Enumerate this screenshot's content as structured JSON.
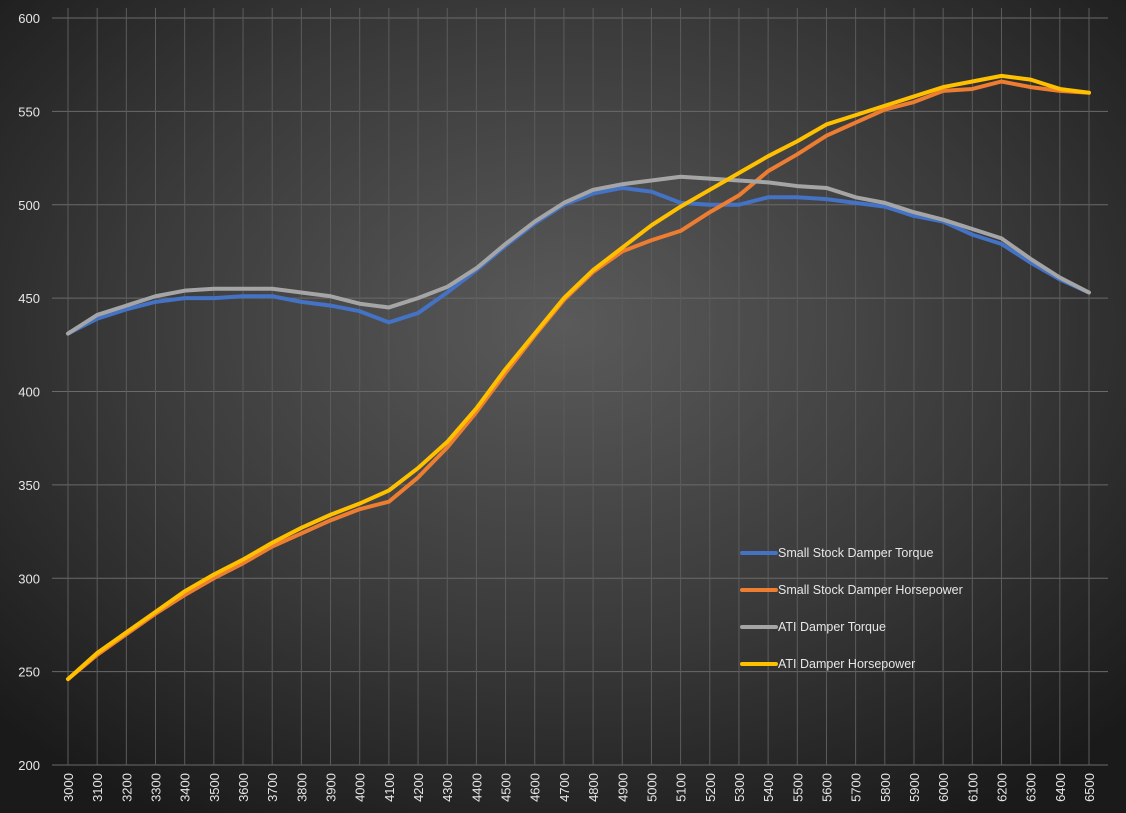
{
  "chart_data": {
    "type": "line",
    "title": "",
    "xlabel": "",
    "ylabel": "",
    "ylim": [
      200,
      600
    ],
    "y_ticks": [
      200,
      250,
      300,
      350,
      400,
      450,
      500,
      550,
      600
    ],
    "grid": true,
    "legend_position": "bottom-right",
    "background": "radial-gray",
    "x": [
      3000,
      3100,
      3200,
      3300,
      3400,
      3500,
      3600,
      3700,
      3800,
      3900,
      4000,
      4100,
      4200,
      4300,
      4400,
      4500,
      4600,
      4700,
      4800,
      4900,
      5000,
      5100,
      5200,
      5300,
      5400,
      5500,
      5600,
      5700,
      5800,
      5900,
      6000,
      6100,
      6200,
      6300,
      6400,
      6500
    ],
    "series": [
      {
        "name": "Small Stock Damper Torque",
        "color": "#4472c4",
        "values": [
          431,
          439,
          444,
          448,
          450,
          450,
          451,
          451,
          448,
          446,
          443,
          437,
          442,
          453,
          465,
          478,
          490,
          500,
          506,
          509,
          507,
          501,
          500,
          500,
          504,
          504,
          503,
          501,
          499,
          494,
          491,
          484,
          479,
          469,
          460,
          453
        ]
      },
      {
        "name": "Small Stock Damper Horsepower",
        "color": "#ed7d31",
        "values": [
          246,
          259,
          270,
          281,
          291,
          300,
          308,
          317,
          324,
          331,
          337,
          341,
          354,
          370,
          389,
          410,
          430,
          449,
          464,
          475,
          481,
          486,
          496,
          505,
          518,
          527,
          537,
          544,
          551,
          555,
          561,
          562,
          566,
          563,
          561,
          560
        ]
      },
      {
        "name": "ATI Damper Torque",
        "color": "#a5a5a5",
        "values": [
          431,
          441,
          446,
          451,
          454,
          455,
          455,
          455,
          453,
          451,
          447,
          445,
          450,
          456,
          466,
          479,
          491,
          501,
          508,
          511,
          513,
          515,
          514,
          513,
          512,
          510,
          509,
          504,
          501,
          496,
          492,
          487,
          482,
          471,
          461,
          453
        ]
      },
      {
        "name": "ATI Damper Horsepower",
        "color": "#ffc000",
        "values": [
          246,
          260,
          271,
          282,
          293,
          302,
          310,
          319,
          327,
          334,
          340,
          347,
          359,
          373,
          391,
          412,
          431,
          450,
          465,
          477,
          489,
          499,
          508,
          517,
          526,
          534,
          543,
          548,
          553,
          558,
          563,
          566,
          569,
          567,
          562,
          560
        ]
      }
    ]
  }
}
